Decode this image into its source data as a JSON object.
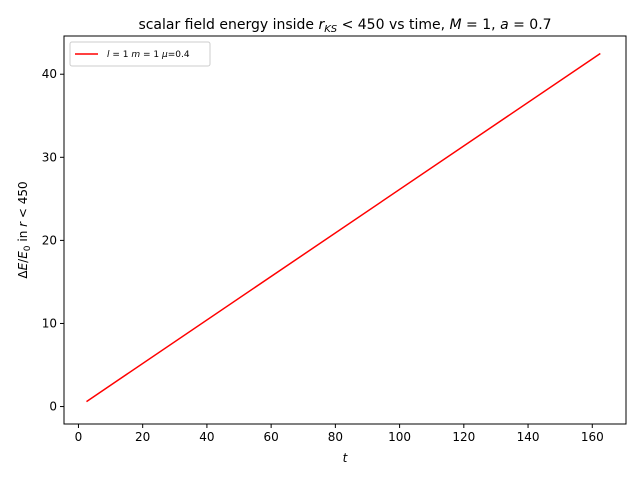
{
  "chart_data": {
    "type": "line",
    "title_prefix": "scalar field energy inside ",
    "title_r": "r",
    "title_r_sub": "KS",
    "title_mid": " < 450 vs time, ",
    "title_M": "M",
    "title_M_val": " = 1, ",
    "title_a": "a",
    "title_a_val": " = 0.7",
    "xlabel": "t",
    "ylabel_delta": "Δ",
    "ylabel_E": "E",
    "ylabel_slash": "/",
    "ylabel_E0": "E",
    "ylabel_E0_sub": "0",
    "ylabel_in": " in ",
    "ylabel_r": "r",
    "ylabel_tail": " < 450",
    "xlim": [
      -4.5,
      170.5
    ],
    "ylim": [
      -2.1,
      44.6
    ],
    "xticks": [
      0,
      20,
      40,
      60,
      80,
      100,
      120,
      140,
      160
    ],
    "yticks": [
      0,
      10,
      20,
      30,
      40
    ],
    "grid": false,
    "legend_position": "top-left",
    "series": [
      {
        "name_l": "l",
        "name_l_val": " = 1  ",
        "name_m": "m",
        "name_m_val": " = 1  ",
        "name_mu": "μ",
        "name_mu_val": "=0.4",
        "color": "#ff0000",
        "x": [
          2.5,
          162.5
        ],
        "y": [
          0.6,
          42.5
        ]
      }
    ]
  }
}
